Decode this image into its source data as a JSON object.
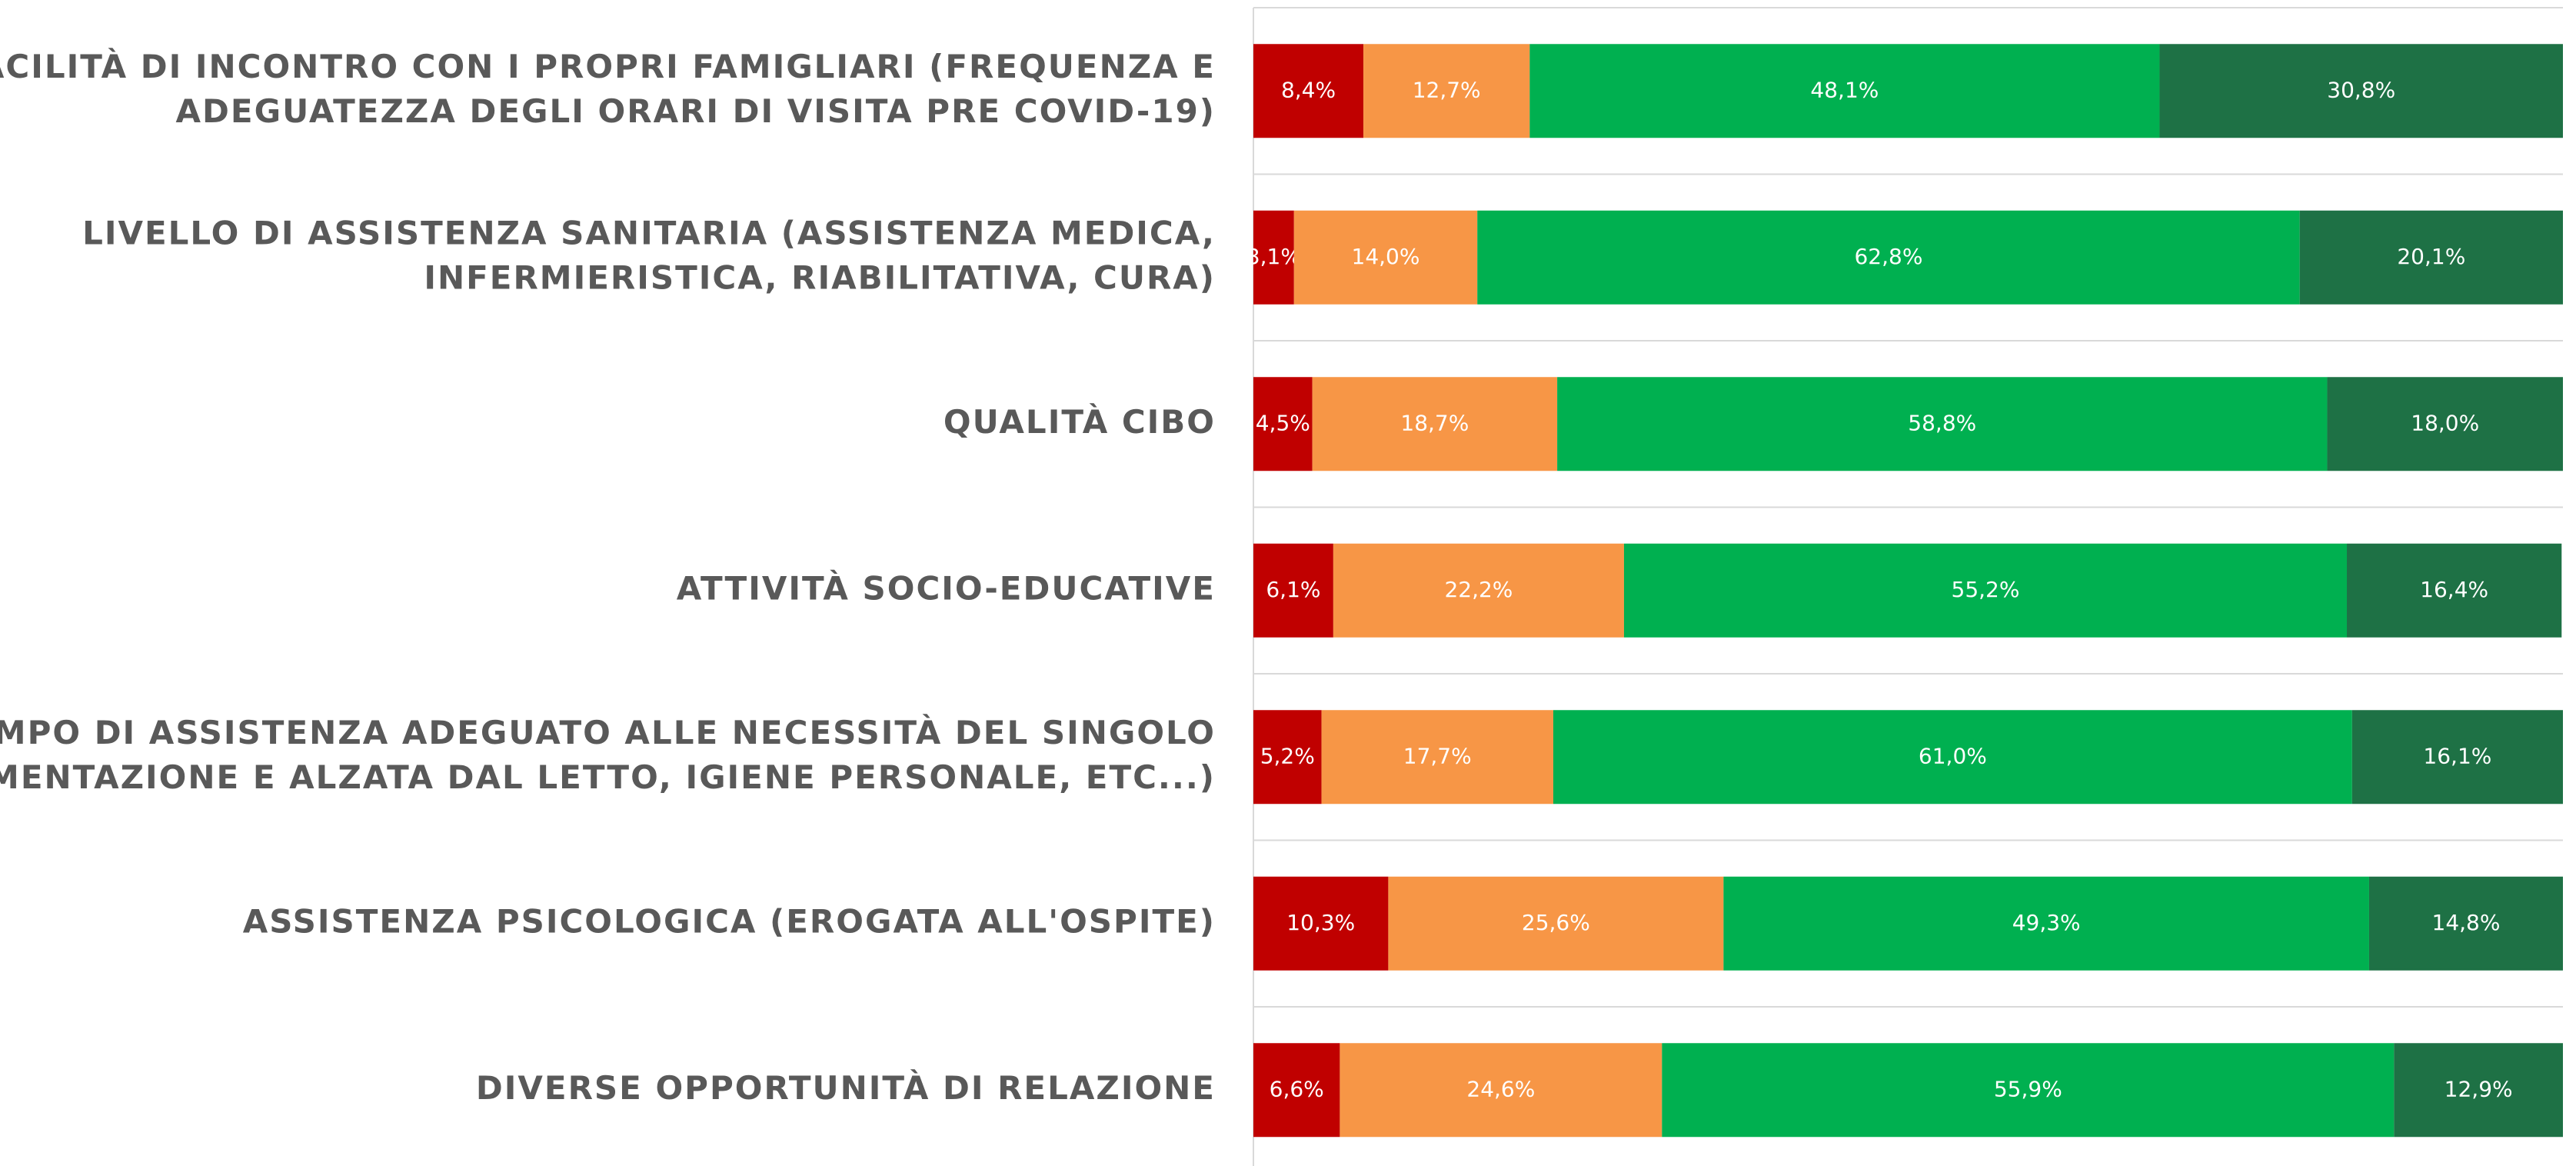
{
  "chart_data": {
    "type": "bar",
    "orientation": "horizontal",
    "stacked": true,
    "categories": [
      [
        "FACILITÀ DI INCONTRO CON I PROPRI FAMIGLIARI (FREQUENZA E",
        "ADEGUATEZZA DEGLI ORARI DI VISITA PRE COVID-19)"
      ],
      [
        "LIVELLO DI ASSISTENZA SANITARIA (ASSISTENZA MEDICA,",
        "INFERMIERISTICA, RIABILITATIVA, CURA)"
      ],
      [
        "QUALITÀ CIBO"
      ],
      [
        "ATTIVITÀ SOCIO-EDUCATIVE"
      ],
      [
        "TEMPO DI ASSISTENZA ADEGUATO ALLE NECESSITÀ DEL SINGOLO",
        "(MOVIMENTAZIONE E ALZATA DAL LETTO, IGIENE PERSONALE, ETC...)"
      ],
      [
        "ASSISTENZA PSICOLOGICA (EROGATA ALL'OSPITE)"
      ],
      [
        "DIVERSE OPPORTUNITÀ DI RELAZIONE"
      ]
    ],
    "series": [
      {
        "color": "#c00000",
        "values": [
          8.4,
          3.1,
          4.5,
          6.1,
          5.2,
          10.3,
          6.6
        ],
        "value_labels": [
          "8,4%",
          "3,1%",
          "4,5%",
          "6,1%",
          "5,2%",
          "10,3%",
          "6,6%"
        ]
      },
      {
        "color": "#f79646",
        "values": [
          12.7,
          14.0,
          18.7,
          22.2,
          17.7,
          25.6,
          24.6
        ],
        "value_labels": [
          "12,7%",
          "14,0%",
          "18,7%",
          "22,2%",
          "17,7%",
          "25,6%",
          "24,6%"
        ]
      },
      {
        "color": "#00b050",
        "values": [
          48.1,
          62.8,
          58.8,
          55.2,
          61.0,
          49.3,
          55.9
        ],
        "value_labels": [
          "48,1%",
          "62,8%",
          "58,8%",
          "55,2%",
          "61,0%",
          "49,3%",
          "55,9%"
        ]
      },
      {
        "color": "#1e7145",
        "values": [
          30.8,
          20.1,
          18.0,
          16.4,
          16.1,
          14.8,
          12.9
        ],
        "value_labels": [
          "30,8%",
          "20,1%",
          "18,0%",
          "16,4%",
          "16,1%",
          "14,8%",
          "12,9%"
        ]
      }
    ],
    "xlim": [
      0,
      100
    ]
  }
}
